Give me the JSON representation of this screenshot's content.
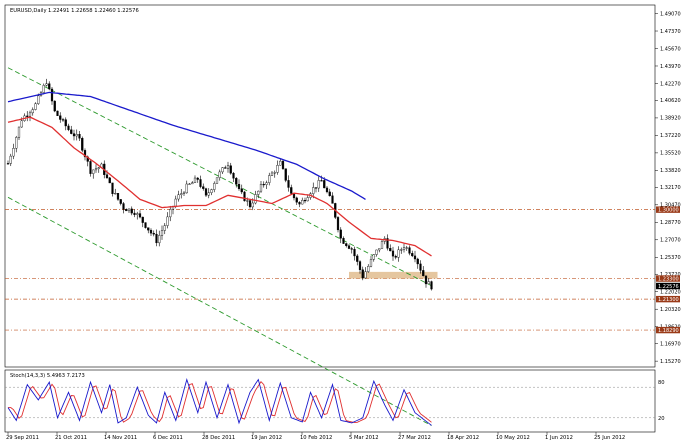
{
  "header": {
    "symbol": "EURUSD,Daily",
    "ohlc": "1.22491 1.22658 1.22460 1.22576"
  },
  "indicator": {
    "label": "Stoch(14,3,3) 5.4963 7.2173",
    "levels": [
      "80",
      "20"
    ]
  },
  "colors": {
    "sma_long": "#1a1acc",
    "sma_short": "#e03030",
    "channel": "#2e9a2e",
    "level_line": "#c05a2a",
    "support_zone": "#deb887",
    "stoch_main": "#1a1acc",
    "stoch_signal": "#e03030",
    "level_badge": "#9a3a18"
  },
  "chart_data": {
    "type": "candlestick",
    "price_axis_ticks": [
      "1.49070",
      "1.47370",
      "1.45670",
      "1.43970",
      "1.42270",
      "1.40620",
      "1.38920",
      "1.37220",
      "1.35520",
      "1.33820",
      "1.32170",
      "1.30470",
      "1.28770",
      "1.27070",
      "1.25370",
      "1.23720",
      "1.22020",
      "1.20320",
      "1.18620",
      "1.16970",
      "1.15270"
    ],
    "price_labels": [
      {
        "text": "1.30000",
        "price": 1.3,
        "style": "badge"
      },
      {
        "text": "1.23300",
        "price": 1.233,
        "style": "badge"
      },
      {
        "text": "1.22576",
        "price": 1.22576,
        "style": "current"
      },
      {
        "text": "1.21300",
        "price": 1.213,
        "style": "badge"
      },
      {
        "text": "1.18290",
        "price": 1.1829,
        "style": "badge"
      }
    ],
    "time_axis_ticks": [
      "29 Sep 2011",
      "21 Oct 2011",
      "14 Nov 2011",
      "6 Dec 2011",
      "28 Dec 2011",
      "19 Jan 2012",
      "10 Feb 2012",
      "5 Mar 2012",
      "27 Mar 2012",
      "18 Apr 2012",
      "10 May 2012",
      "1 Jun 2012",
      "25 Jun 2012"
    ],
    "horizontal_levels": [
      1.3,
      1.233,
      1.213,
      1.1829
    ],
    "support_zone": [
      1.233,
      1.2395
    ],
    "ylim": [
      1.147,
      1.499
    ],
    "stoch_ylim": [
      0,
      100
    ],
    "path_knots": [
      [
        0,
        1.345
      ],
      [
        5,
        1.388
      ],
      [
        10,
        1.402
      ],
      [
        14,
        1.425
      ],
      [
        17,
        1.395
      ],
      [
        22,
        1.378
      ],
      [
        26,
        1.368
      ],
      [
        30,
        1.338
      ],
      [
        34,
        1.342
      ],
      [
        38,
        1.318
      ],
      [
        42,
        1.302
      ],
      [
        46,
        1.298
      ],
      [
        50,
        1.285
      ],
      [
        54,
        1.27
      ],
      [
        57,
        1.285
      ],
      [
        61,
        1.31
      ],
      [
        65,
        1.322
      ],
      [
        69,
        1.33
      ],
      [
        72,
        1.312
      ],
      [
        76,
        1.332
      ],
      [
        80,
        1.345
      ],
      [
        84,
        1.318
      ],
      [
        88,
        1.304
      ],
      [
        92,
        1.322
      ],
      [
        96,
        1.335
      ],
      [
        99,
        1.345
      ],
      [
        103,
        1.315
      ],
      [
        106,
        1.305
      ],
      [
        110,
        1.318
      ],
      [
        114,
        1.328
      ],
      [
        118,
        1.305
      ],
      [
        121,
        1.272
      ],
      [
        125,
        1.262
      ],
      [
        129,
        1.235
      ],
      [
        133,
        1.255
      ],
      [
        137,
        1.272
      ],
      [
        140,
        1.252
      ],
      [
        144,
        1.265
      ],
      [
        148,
        1.255
      ],
      [
        152,
        1.23
      ],
      [
        154,
        1.2257
      ]
    ],
    "sma_long_knots": [
      [
        0,
        1.405
      ],
      [
        15,
        1.414
      ],
      [
        30,
        1.41
      ],
      [
        45,
        1.396
      ],
      [
        60,
        1.382
      ],
      [
        75,
        1.37
      ],
      [
        90,
        1.358
      ],
      [
        105,
        1.344
      ],
      [
        115,
        1.33
      ],
      [
        125,
        1.318
      ],
      [
        130,
        1.31
      ]
    ],
    "sma_short_knots": [
      [
        0,
        1.385
      ],
      [
        8,
        1.39
      ],
      [
        16,
        1.38
      ],
      [
        24,
        1.36
      ],
      [
        32,
        1.345
      ],
      [
        40,
        1.328
      ],
      [
        48,
        1.31
      ],
      [
        56,
        1.302
      ],
      [
        64,
        1.304
      ],
      [
        72,
        1.304
      ],
      [
        80,
        1.314
      ],
      [
        88,
        1.31
      ],
      [
        96,
        1.306
      ],
      [
        104,
        1.316
      ],
      [
        110,
        1.314
      ],
      [
        116,
        1.306
      ],
      [
        124,
        1.288
      ],
      [
        132,
        1.272
      ],
      [
        140,
        1.27
      ],
      [
        148,
        1.265
      ],
      [
        154,
        1.255
      ]
    ],
    "channel_lines": [
      {
        "from": [
          0,
          1.438
        ],
        "to": [
          154,
          1.226
        ]
      },
      {
        "from": [
          0,
          1.312
        ],
        "to": [
          154,
          1.09
        ]
      }
    ],
    "stoch_main_knots": [
      [
        0,
        40
      ],
      [
        3,
        15
      ],
      [
        7,
        85
      ],
      [
        11,
        55
      ],
      [
        15,
        90
      ],
      [
        18,
        20
      ],
      [
        22,
        70
      ],
      [
        26,
        15
      ],
      [
        30,
        90
      ],
      [
        34,
        30
      ],
      [
        37,
        85
      ],
      [
        40,
        10
      ],
      [
        43,
        20
      ],
      [
        47,
        80
      ],
      [
        51,
        25
      ],
      [
        54,
        10
      ],
      [
        57,
        70
      ],
      [
        61,
        15
      ],
      [
        65,
        95
      ],
      [
        69,
        30
      ],
      [
        72,
        90
      ],
      [
        76,
        20
      ],
      [
        80,
        85
      ],
      [
        84,
        10
      ],
      [
        88,
        70
      ],
      [
        91,
        95
      ],
      [
        95,
        15
      ],
      [
        99,
        88
      ],
      [
        103,
        20
      ],
      [
        107,
        12
      ],
      [
        110,
        70
      ],
      [
        114,
        20
      ],
      [
        118,
        85
      ],
      [
        121,
        15
      ],
      [
        125,
        10
      ],
      [
        129,
        20
      ],
      [
        133,
        92
      ],
      [
        137,
        45
      ],
      [
        140,
        15
      ],
      [
        144,
        75
      ],
      [
        148,
        30
      ],
      [
        154,
        5
      ]
    ],
    "stoch_signal_lag": 1.5
  }
}
